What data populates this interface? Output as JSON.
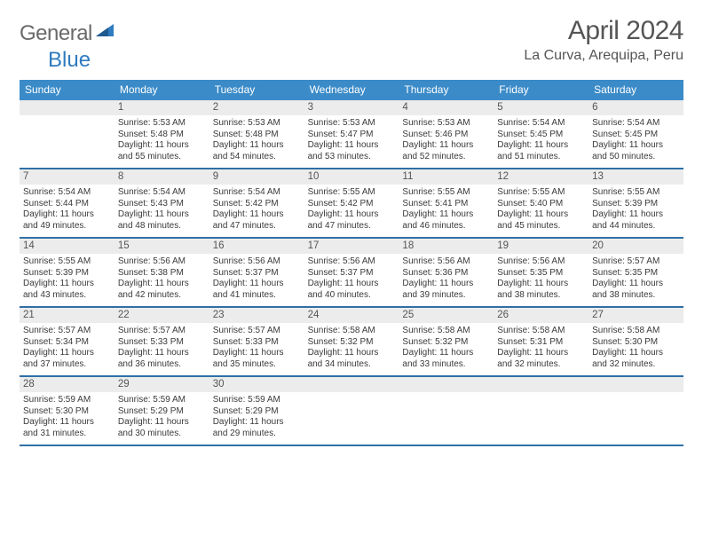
{
  "logo": {
    "word1": "General",
    "word2": "Blue"
  },
  "title": "April 2024",
  "location": "La Curva, Arequipa, Peru",
  "colors": {
    "header_bg": "#3b8bc8",
    "header_text": "#ffffff",
    "rule": "#2f6fa6",
    "daynum_bg": "#ececec",
    "body_text": "#3a3a3a",
    "muted": "#555555",
    "logo_blue": "#2f7bbf"
  },
  "layout": {
    "cols": 7,
    "dow_fontsize": 12,
    "daynum_fontsize": 11.5,
    "cell_fontsize": 10,
    "title_fontsize": 30,
    "location_fontsize": 16
  },
  "days_of_week": [
    "Sunday",
    "Monday",
    "Tuesday",
    "Wednesday",
    "Thursday",
    "Friday",
    "Saturday"
  ],
  "weeks": [
    [
      {
        "n": "",
        "lines": []
      },
      {
        "n": "1",
        "lines": [
          "Sunrise: 5:53 AM",
          "Sunset: 5:48 PM",
          "Daylight: 11 hours and 55 minutes."
        ]
      },
      {
        "n": "2",
        "lines": [
          "Sunrise: 5:53 AM",
          "Sunset: 5:48 PM",
          "Daylight: 11 hours and 54 minutes."
        ]
      },
      {
        "n": "3",
        "lines": [
          "Sunrise: 5:53 AM",
          "Sunset: 5:47 PM",
          "Daylight: 11 hours and 53 minutes."
        ]
      },
      {
        "n": "4",
        "lines": [
          "Sunrise: 5:53 AM",
          "Sunset: 5:46 PM",
          "Daylight: 11 hours and 52 minutes."
        ]
      },
      {
        "n": "5",
        "lines": [
          "Sunrise: 5:54 AM",
          "Sunset: 5:45 PM",
          "Daylight: 11 hours and 51 minutes."
        ]
      },
      {
        "n": "6",
        "lines": [
          "Sunrise: 5:54 AM",
          "Sunset: 5:45 PM",
          "Daylight: 11 hours and 50 minutes."
        ]
      }
    ],
    [
      {
        "n": "7",
        "lines": [
          "Sunrise: 5:54 AM",
          "Sunset: 5:44 PM",
          "Daylight: 11 hours and 49 minutes."
        ]
      },
      {
        "n": "8",
        "lines": [
          "Sunrise: 5:54 AM",
          "Sunset: 5:43 PM",
          "Daylight: 11 hours and 48 minutes."
        ]
      },
      {
        "n": "9",
        "lines": [
          "Sunrise: 5:54 AM",
          "Sunset: 5:42 PM",
          "Daylight: 11 hours and 47 minutes."
        ]
      },
      {
        "n": "10",
        "lines": [
          "Sunrise: 5:55 AM",
          "Sunset: 5:42 PM",
          "Daylight: 11 hours and 47 minutes."
        ]
      },
      {
        "n": "11",
        "lines": [
          "Sunrise: 5:55 AM",
          "Sunset: 5:41 PM",
          "Daylight: 11 hours and 46 minutes."
        ]
      },
      {
        "n": "12",
        "lines": [
          "Sunrise: 5:55 AM",
          "Sunset: 5:40 PM",
          "Daylight: 11 hours and 45 minutes."
        ]
      },
      {
        "n": "13",
        "lines": [
          "Sunrise: 5:55 AM",
          "Sunset: 5:39 PM",
          "Daylight: 11 hours and 44 minutes."
        ]
      }
    ],
    [
      {
        "n": "14",
        "lines": [
          "Sunrise: 5:55 AM",
          "Sunset: 5:39 PM",
          "Daylight: 11 hours and 43 minutes."
        ]
      },
      {
        "n": "15",
        "lines": [
          "Sunrise: 5:56 AM",
          "Sunset: 5:38 PM",
          "Daylight: 11 hours and 42 minutes."
        ]
      },
      {
        "n": "16",
        "lines": [
          "Sunrise: 5:56 AM",
          "Sunset: 5:37 PM",
          "Daylight: 11 hours and 41 minutes."
        ]
      },
      {
        "n": "17",
        "lines": [
          "Sunrise: 5:56 AM",
          "Sunset: 5:37 PM",
          "Daylight: 11 hours and 40 minutes."
        ]
      },
      {
        "n": "18",
        "lines": [
          "Sunrise: 5:56 AM",
          "Sunset: 5:36 PM",
          "Daylight: 11 hours and 39 minutes."
        ]
      },
      {
        "n": "19",
        "lines": [
          "Sunrise: 5:56 AM",
          "Sunset: 5:35 PM",
          "Daylight: 11 hours and 38 minutes."
        ]
      },
      {
        "n": "20",
        "lines": [
          "Sunrise: 5:57 AM",
          "Sunset: 5:35 PM",
          "Daylight: 11 hours and 38 minutes."
        ]
      }
    ],
    [
      {
        "n": "21",
        "lines": [
          "Sunrise: 5:57 AM",
          "Sunset: 5:34 PM",
          "Daylight: 11 hours and 37 minutes."
        ]
      },
      {
        "n": "22",
        "lines": [
          "Sunrise: 5:57 AM",
          "Sunset: 5:33 PM",
          "Daylight: 11 hours and 36 minutes."
        ]
      },
      {
        "n": "23",
        "lines": [
          "Sunrise: 5:57 AM",
          "Sunset: 5:33 PM",
          "Daylight: 11 hours and 35 minutes."
        ]
      },
      {
        "n": "24",
        "lines": [
          "Sunrise: 5:58 AM",
          "Sunset: 5:32 PM",
          "Daylight: 11 hours and 34 minutes."
        ]
      },
      {
        "n": "25",
        "lines": [
          "Sunrise: 5:58 AM",
          "Sunset: 5:32 PM",
          "Daylight: 11 hours and 33 minutes."
        ]
      },
      {
        "n": "26",
        "lines": [
          "Sunrise: 5:58 AM",
          "Sunset: 5:31 PM",
          "Daylight: 11 hours and 32 minutes."
        ]
      },
      {
        "n": "27",
        "lines": [
          "Sunrise: 5:58 AM",
          "Sunset: 5:30 PM",
          "Daylight: 11 hours and 32 minutes."
        ]
      }
    ],
    [
      {
        "n": "28",
        "lines": [
          "Sunrise: 5:59 AM",
          "Sunset: 5:30 PM",
          "Daylight: 11 hours and 31 minutes."
        ]
      },
      {
        "n": "29",
        "lines": [
          "Sunrise: 5:59 AM",
          "Sunset: 5:29 PM",
          "Daylight: 11 hours and 30 minutes."
        ]
      },
      {
        "n": "30",
        "lines": [
          "Sunrise: 5:59 AM",
          "Sunset: 5:29 PM",
          "Daylight: 11 hours and 29 minutes."
        ]
      },
      {
        "n": "",
        "lines": []
      },
      {
        "n": "",
        "lines": []
      },
      {
        "n": "",
        "lines": []
      },
      {
        "n": "",
        "lines": []
      }
    ]
  ]
}
